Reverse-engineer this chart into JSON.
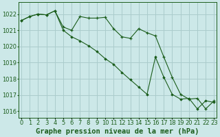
{
  "title": "Graphe pression niveau de la mer (hPa)",
  "background_color": "#cce8e8",
  "grid_color": "#aacccc",
  "line_color": "#1a5c1a",
  "x_labels": [
    "0",
    "1",
    "2",
    "3",
    "4",
    "5",
    "6",
    "7",
    "8",
    "9",
    "10",
    "11",
    "12",
    "13",
    "14",
    "15",
    "16",
    "17",
    "18",
    "19",
    "20",
    "21",
    "22",
    "23"
  ],
  "series1": [
    1021.6,
    1021.85,
    1022.0,
    1021.95,
    1022.2,
    1021.2,
    1021.0,
    1021.85,
    1021.75,
    1021.75,
    1021.8,
    1021.1,
    1020.6,
    1020.5,
    1021.1,
    1020.85,
    1020.65,
    1019.35,
    1018.1,
    1017.05,
    1016.75,
    1016.8,
    1016.15,
    1016.65
  ],
  "series2": [
    1021.6,
    1021.85,
    1022.0,
    1021.95,
    1022.2,
    1021.0,
    1020.6,
    1020.35,
    1020.05,
    1019.7,
    1019.25,
    1018.9,
    1018.4,
    1017.95,
    1017.5,
    1017.05,
    1019.35,
    1018.1,
    1017.05,
    1016.75,
    1016.8,
    1016.15,
    1016.65,
    1016.55
  ],
  "ylim": [
    1015.6,
    1022.75
  ],
  "yticks": [
    1016,
    1017,
    1018,
    1019,
    1020,
    1021,
    1022
  ],
  "title_fontsize": 7.5,
  "tick_fontsize": 6.0
}
